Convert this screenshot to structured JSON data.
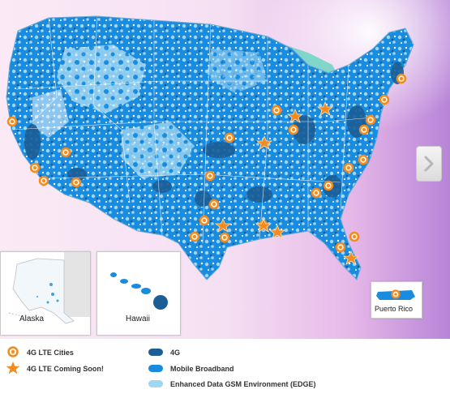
{
  "insets": {
    "alaska": "Alaska",
    "hawaii": "Hawaii",
    "puerto_rico": "Puerto Rico"
  },
  "legend": {
    "lte_cities": "4G LTE Cities",
    "lte_soon": "4G LTE Coming Soon!",
    "fourg": "4G",
    "mobile_broadband": "Mobile Broadband",
    "edge": "Enhanced Data GSM Environment (EDGE)"
  },
  "colors": {
    "fourg": "#1b5e96",
    "mobile_broadband": "#1a8ce0",
    "edge": "#9fd6f2",
    "lakes": "#7fd6c9",
    "marker_city": "#f28a1e",
    "marker_soon": "#f58b20"
  },
  "icons": {
    "city_marker": "orange-ring-marker-icon",
    "soon_marker": "orange-star-icon",
    "next": "chevron-right-icon"
  }
}
